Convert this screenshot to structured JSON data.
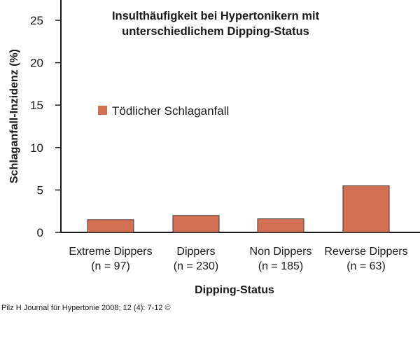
{
  "chart_data": {
    "type": "bar",
    "title": [
      "Insulthäufigkeit bei Hypertonikern mit",
      "unterschiedlichem Dipping-Status"
    ],
    "xlabel": "Dipping-Status",
    "ylabel": "Schlaganfall-Inzidenz (%)",
    "categories": [
      [
        "Extreme Dippers",
        "(n = 97)"
      ],
      [
        "Dippers",
        "(n = 230)"
      ],
      [
        "Non Dippers",
        "(n = 185)"
      ],
      [
        "Reverse Dippers",
        "(n = 63)"
      ]
    ],
    "series": [
      {
        "name": "Tödlicher Schlaganfall",
        "values": [
          1.5,
          2.0,
          1.6,
          5.5
        ],
        "color": "#d36f52"
      }
    ],
    "ylim": [
      0,
      25
    ],
    "yticks": [
      0,
      5,
      10,
      15,
      20,
      25
    ],
    "grid": false,
    "legend_position": "inside-left",
    "source": "Pilz H Journal für Hypertonie 2008; 12 (4): 7-12 ©"
  }
}
